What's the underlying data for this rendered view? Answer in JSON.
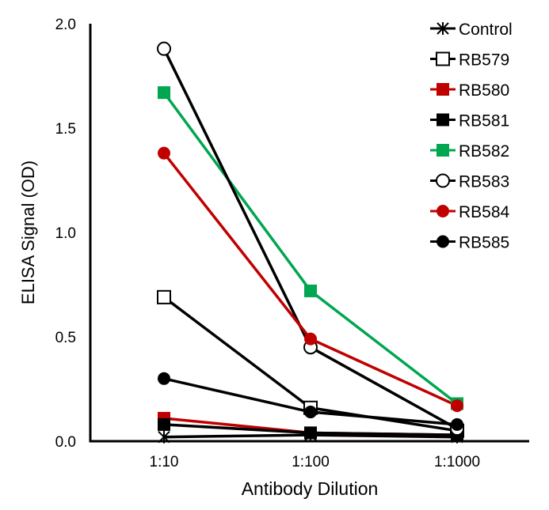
{
  "chart_data": {
    "type": "line",
    "title": "",
    "xlabel": "Antibody Dilution",
    "ylabel": "ELISA Signal (OD)",
    "categories": [
      "1:10",
      "1:100",
      "1:1000"
    ],
    "ylim": [
      0,
      2.0
    ],
    "yticks": [
      "0.0",
      "0.5",
      "1.0",
      "1.5",
      "2.0"
    ],
    "ytick_values": [
      0,
      0.5,
      1.0,
      1.5,
      2.0
    ],
    "grid": false,
    "legend_position": "top-right",
    "series": [
      {
        "name": "Control",
        "color": "#000000",
        "marker": "asterisk",
        "values": [
          0.02,
          0.03,
          0.02
        ]
      },
      {
        "name": "RB579",
        "color": "#000000",
        "marker": "square-open",
        "values": [
          0.69,
          0.16,
          0.05
        ]
      },
      {
        "name": "RB580",
        "color": "#c00000",
        "marker": "square-filled",
        "values": [
          0.11,
          0.04,
          0.03
        ]
      },
      {
        "name": "RB581",
        "color": "#000000",
        "marker": "square-filled",
        "values": [
          0.08,
          0.04,
          0.03
        ]
      },
      {
        "name": "RB582",
        "color": "#00a650",
        "marker": "square-filled",
        "values": [
          1.67,
          0.72,
          0.18
        ]
      },
      {
        "name": "RB583",
        "color": "#000000",
        "marker": "circle-open",
        "values": [
          1.88,
          0.45,
          0.06
        ]
      },
      {
        "name": "RB584",
        "color": "#c00000",
        "marker": "circle-filled",
        "values": [
          1.38,
          0.49,
          0.17
        ]
      },
      {
        "name": "RB585",
        "color": "#000000",
        "marker": "circle-filled",
        "values": [
          0.3,
          0.14,
          0.08
        ]
      }
    ]
  }
}
